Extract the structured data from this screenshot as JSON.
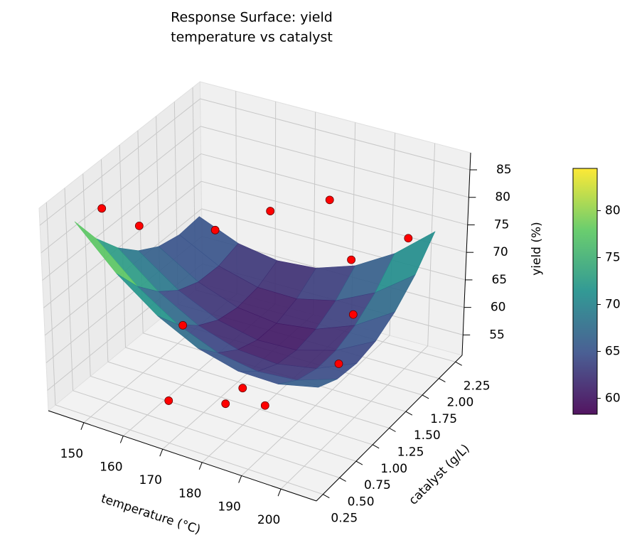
{
  "chart_data": {
    "type": "surface3d",
    "title": "Response Surface: yield",
    "subtitle": "temperature vs catalyst",
    "xlabel": "temperature (°C)",
    "ylabel": "catalyst (g/L)",
    "zlabel": "yield (%)",
    "xlim": [
      141,
      209
    ],
    "ylim": [
      0.15,
      2.35
    ],
    "zlim": [
      51.3,
      88.1
    ],
    "xticks": [
      150,
      160,
      170,
      180,
      190,
      200
    ],
    "yticks": [
      0.25,
      {
        "value": 0.5,
        "label": "0.50"
      },
      0.75,
      {
        "value": 1.0,
        "label": "1.00"
      },
      1.25,
      {
        "value": 1.5,
        "label": "1.50"
      },
      1.75,
      {
        "value": 2.0,
        "label": "2.00"
      },
      2.25
    ],
    "zticks": [
      55,
      60,
      65,
      70,
      75,
      80,
      85
    ],
    "grid": true,
    "colormap": "viridis",
    "surface": {
      "x": [
        145,
        155,
        165,
        175,
        185,
        195,
        205
      ],
      "y": [
        0.4,
        0.68,
        0.97,
        1.25,
        1.53,
        1.82,
        2.1
      ],
      "z": [
        [
          84.0,
          76.89,
          71.56,
          68.0,
          66.22,
          66.22,
          68.0
        ],
        [
          77.97,
          71.56,
          66.92,
          64.06,
          62.97,
          63.67,
          66.14
        ],
        [
          73.22,
          67.5,
          63.56,
          61.39,
          61.0,
          62.39,
          65.56
        ],
        [
          69.75,
          64.72,
          61.47,
          60.0,
          60.31,
          62.39,
          66.25
        ],
        [
          67.56,
          63.22,
          60.67,
          59.89,
          60.89,
          63.67,
          68.22
        ],
        [
          66.64,
          63.0,
          61.14,
          61.06,
          62.75,
          66.22,
          71.47
        ],
        [
          67.0,
          64.06,
          62.89,
          63.5,
          65.89,
          70.06,
          76.0
        ]
      ]
    },
    "points": {
      "color": "#ff0000",
      "x": [
        150,
        150,
        160,
        165,
        180,
        190,
        195,
        200,
        165,
        200,
        180,
        180,
        190,
        170
      ],
      "y": [
        0.5,
        1.0,
        1.5,
        2.0,
        2.0,
        1.75,
        1.5,
        2.0,
        0.75,
        1.0,
        0.5,
        0.75,
        0.5,
        0.25
      ],
      "z": [
        86.5,
        78,
        74,
        73,
        78,
        72,
        66,
        75,
        66,
        64,
        58,
        58,
        60,
        59
      ]
    },
    "colorbar": {
      "clim": [
        58.3,
        84.5
      ],
      "ticks": [
        60,
        65,
        70,
        75,
        80
      ]
    }
  }
}
